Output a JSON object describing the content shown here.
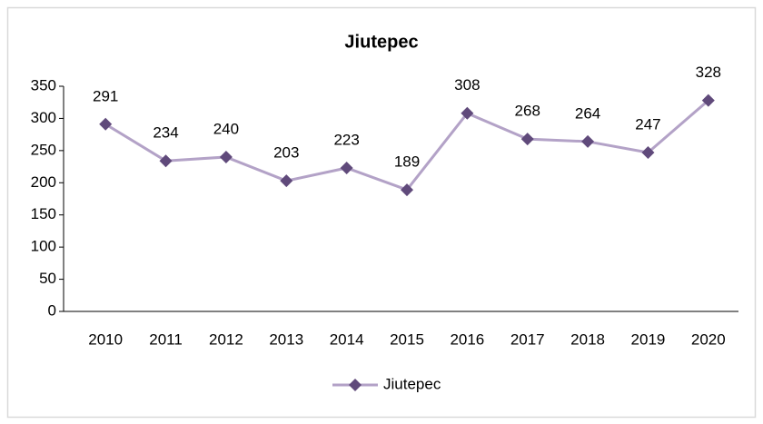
{
  "chart_data": {
    "type": "line",
    "title": "Jiutepec",
    "categories": [
      "2010",
      "2011",
      "2012",
      "2013",
      "2014",
      "2015",
      "2016",
      "2017",
      "2018",
      "2019",
      "2020"
    ],
    "series": [
      {
        "name": "Jiutepec",
        "color": "#b3a2c7",
        "marker_color": "#604a7b",
        "values": [
          291,
          234,
          240,
          203,
          223,
          189,
          308,
          268,
          264,
          247,
          328
        ]
      }
    ],
    "ylim": [
      0,
      350
    ],
    "yticks": [
      0,
      50,
      100,
      150,
      200,
      250,
      300,
      350
    ],
    "grid": false,
    "legend": "bottom",
    "data_labels": true
  }
}
